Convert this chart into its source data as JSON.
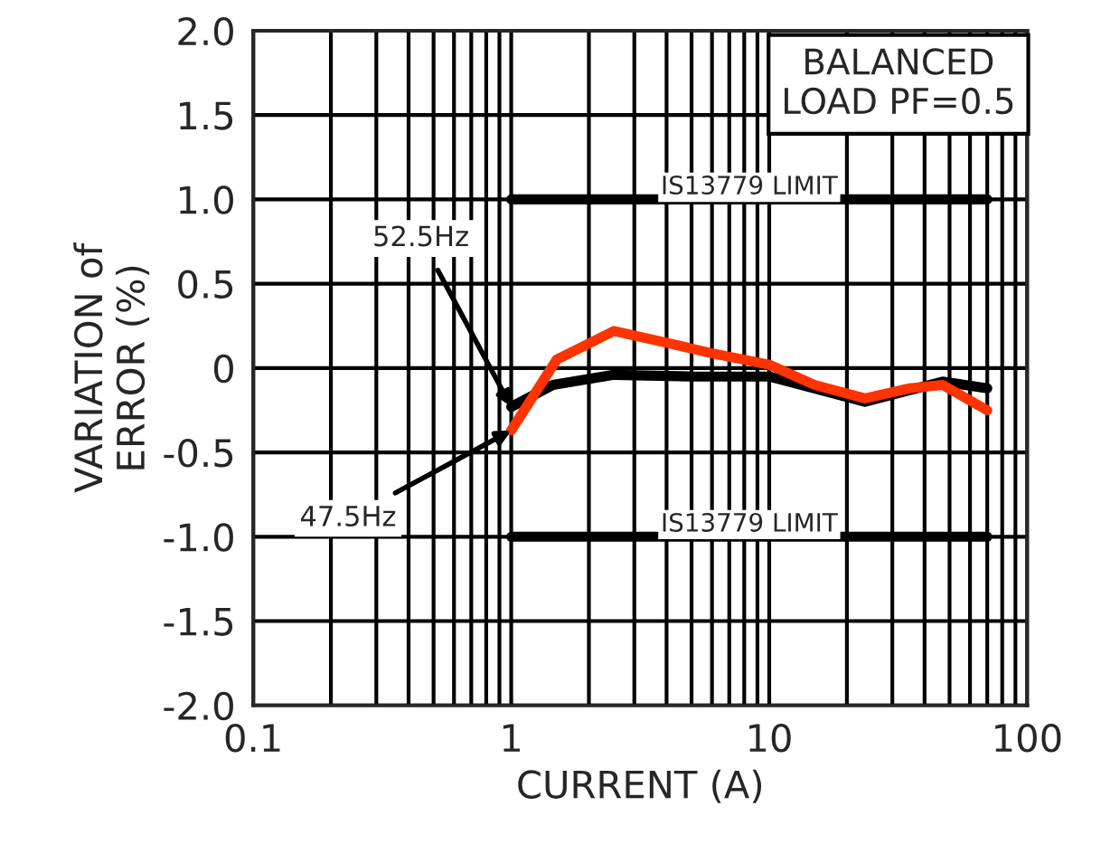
{
  "chart_data": {
    "type": "line",
    "xlabel": "CURRENT (A)",
    "ylabel": "VARIATION of\nERROR (%)",
    "log": "x",
    "xlim": [
      0.1,
      100
    ],
    "xticks": [
      {
        "value": 0.1,
        "label": "0.1"
      },
      1,
      10,
      100
    ],
    "ylim": [
      -2,
      2
    ],
    "yticks": [
      {
        "value": -2,
        "label": "-2.0"
      },
      {
        "value": -1.5,
        "label": "-1.5"
      },
      {
        "value": -1,
        "label": "-1.0"
      },
      {
        "value": -0.5,
        "label": "-0.5"
      },
      0,
      {
        "value": 0.5,
        "label": "0.5"
      },
      {
        "value": 1,
        "label": "1.0"
      },
      {
        "value": 1.5,
        "label": "1.5"
      },
      {
        "value": 2,
        "label": "2.0"
      }
    ],
    "grid": true,
    "series": [
      {
        "color": "#000000",
        "x": [
          1,
          1.45,
          2.5,
          5,
          10,
          23.5,
          47,
          70
        ],
        "values": [
          -0.23,
          -0.1,
          -0.04,
          -0.05,
          -0.05,
          -0.2,
          -0.08,
          -0.12
        ]
      },
      {
        "color": "#ff3300",
        "x": [
          1,
          1.5,
          2.5,
          4,
          5.9,
          10,
          15,
          23.5,
          35,
          47,
          70
        ],
        "values": [
          -0.37,
          0.05,
          0.22,
          0.15,
          0.09,
          0.02,
          -0.1,
          -0.18,
          -0.12,
          -0.1,
          -0.25
        ]
      },
      {
        "name": "IS13779 LIMIT",
        "color": "#000000",
        "x": [
          1,
          70
        ],
        "values": [
          1,
          1
        ]
      },
      {
        "name": "IS13779 LIMIT",
        "color": "#000000",
        "x": [
          1,
          70
        ],
        "values": [
          -1,
          -1
        ]
      }
    ],
    "annotations": [
      {
        "text": "52.5Hz",
        "x": 1,
        "y": -0.23
      },
      {
        "text": "47.5Hz",
        "x": 1,
        "y": -0.37
      },
      "BALANCED\nLOAD PF=0.5"
    ]
  }
}
